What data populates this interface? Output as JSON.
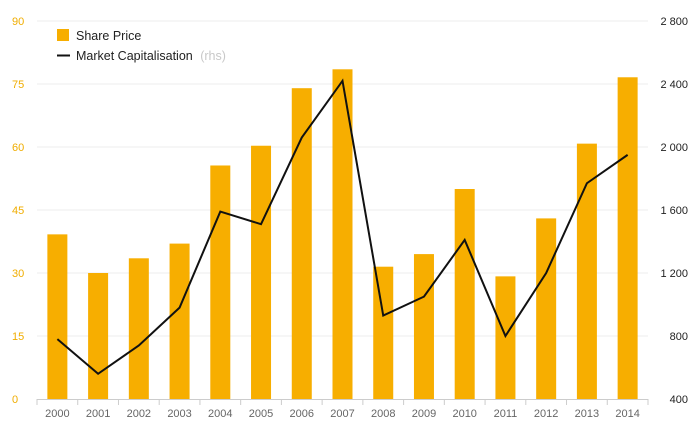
{
  "colors": {
    "bar": "#f7ae00",
    "line": "#111111",
    "grid": "#ececec",
    "left_axis_text": "#f0ad00",
    "right_axis_text": "#222222",
    "x_axis_text": "#666666",
    "legend_muted": "#c8c8c8"
  },
  "chart_data": {
    "type": "bar",
    "categories": [
      "2000",
      "2001",
      "2002",
      "2003",
      "2004",
      "2005",
      "2006",
      "2007",
      "2008",
      "2009",
      "2010",
      "2011",
      "2012",
      "2013",
      "2014"
    ],
    "series": [
      {
        "name": "Share Price",
        "type": "bar",
        "axis": "left",
        "values": [
          39.2,
          30.0,
          33.5,
          37.0,
          55.6,
          60.3,
          74.0,
          78.5,
          31.5,
          34.5,
          50.0,
          29.2,
          43.0,
          60.8,
          76.6
        ]
      },
      {
        "name": "Market Capitalisation",
        "type": "line",
        "axis": "right",
        "values": [
          780,
          560,
          740,
          980,
          1590,
          1510,
          2060,
          2420,
          930,
          1050,
          1410,
          800,
          1200,
          1770,
          1950
        ]
      }
    ],
    "legend": [
      {
        "label": "Share Price",
        "suffix": ""
      },
      {
        "label": "Market Capitalisation",
        "suffix": "(rhs)"
      }
    ],
    "legend_position": "top-left",
    "y_left": {
      "ylim": [
        0,
        90
      ],
      "ticks": [
        "0",
        "15",
        "30",
        "45",
        "60",
        "75",
        "90"
      ]
    },
    "y_right": {
      "ylim": [
        400,
        2800
      ],
      "ticks": [
        "400",
        "800",
        "1 200",
        "1 600",
        "2 000",
        "2 400",
        "2 800"
      ]
    },
    "grid": true,
    "title": "",
    "xlabel": "",
    "ylabel": ""
  }
}
